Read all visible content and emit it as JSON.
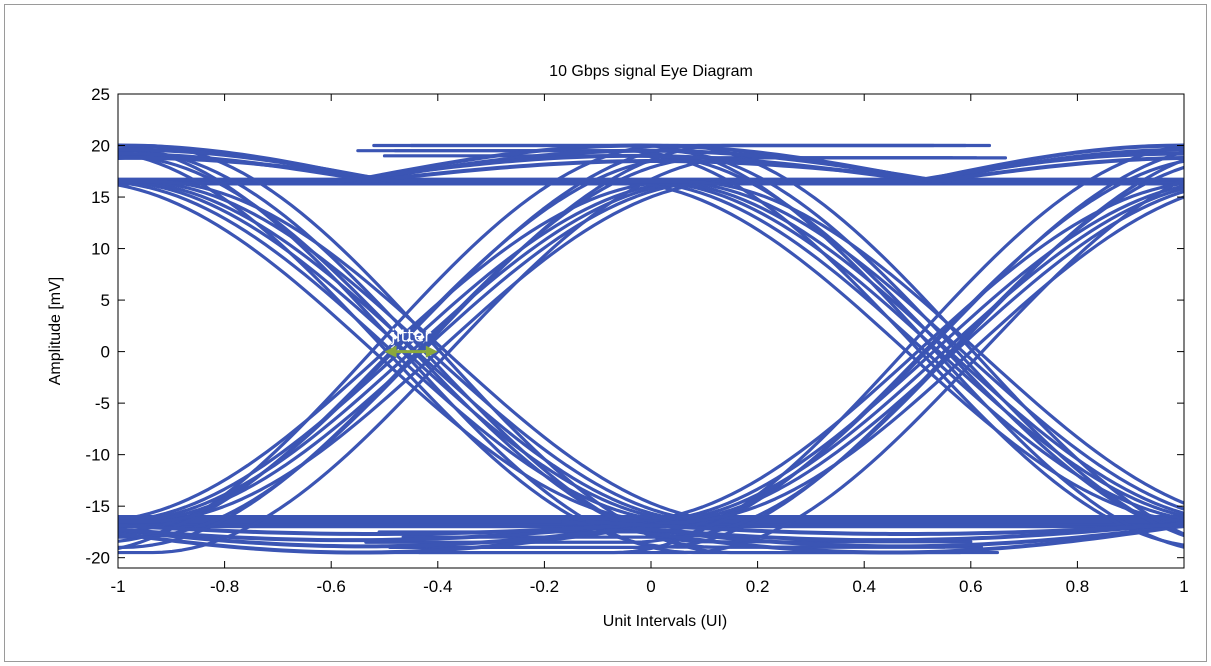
{
  "chart_data": {
    "type": "line",
    "title": "10 Gbps signal Eye Diagram",
    "xlabel": "Unit Intervals (UI)",
    "ylabel": "Amplitude [mV]",
    "xlim": [
      -1,
      1
    ],
    "ylim": [
      -21,
      25
    ],
    "xticks": [
      -1,
      -0.8,
      -0.6,
      -0.4,
      -0.2,
      0,
      0.2,
      0.4,
      0.6,
      0.8,
      1
    ],
    "xtick_labels": [
      "-1",
      "-0.8",
      "-0.6",
      "-0.4",
      "-0.2",
      "0",
      "0.2",
      "0.4",
      "0.6",
      "0.8",
      "1"
    ],
    "yticks": [
      -20,
      -15,
      -10,
      -5,
      0,
      5,
      10,
      15,
      20,
      25
    ],
    "ytick_labels": [
      "-20",
      "-15",
      "-10",
      "-5",
      "0",
      "5",
      "10",
      "15",
      "20",
      "25"
    ],
    "grid": false,
    "series_color": "#3b55b4",
    "eye_levels": {
      "high_flat": 16.5,
      "low_flat": -16.5,
      "high_peak": 20,
      "low_peak": -19.5
    },
    "crossings": [
      {
        "x": -0.45,
        "y": 0
      },
      {
        "x": 0.55,
        "y": 0
      }
    ],
    "annotation": {
      "text": "jitter",
      "x_from": -0.5,
      "x_to": -0.4,
      "y": 0,
      "arrow_color": "#8aa83c"
    }
  }
}
